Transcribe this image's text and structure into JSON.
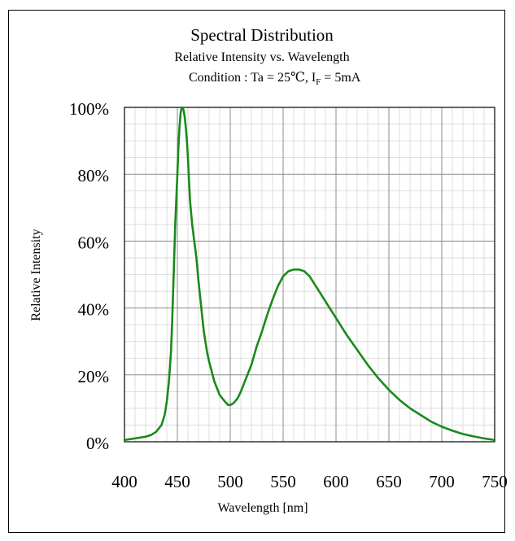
{
  "chart_data": {
    "type": "line",
    "title": "Spectral Distribution",
    "subtitle": "Relative Intensity vs. Wavelength",
    "condition": {
      "prefix": "Condition : Ta = 25℃, I",
      "subscript": "F",
      "suffix": " = 5mA"
    },
    "xlabel": "Wavelength [nm]",
    "ylabel": "Relative Intensity",
    "xlim": [
      400,
      750
    ],
    "ylim": [
      0,
      100
    ],
    "x_ticks": [
      400,
      450,
      500,
      550,
      600,
      650,
      700,
      750
    ],
    "x_tick_labels": [
      "400",
      "450",
      "500",
      "550",
      "600",
      "650",
      "700",
      "750"
    ],
    "y_ticks": [
      0,
      20,
      40,
      60,
      80,
      100
    ],
    "y_tick_labels": [
      "0%",
      "20%",
      "40%",
      "60%",
      "80%",
      "100%"
    ],
    "grid": true,
    "series": [
      {
        "color": "#1a8a1a",
        "x": [
          400,
          410,
          420,
          425,
          430,
          435,
          438,
          440,
          442,
          444,
          445,
          446,
          447,
          448,
          450,
          451,
          452,
          453,
          454,
          455,
          456,
          457,
          458,
          459,
          460,
          461,
          462,
          464,
          466,
          468,
          470,
          472,
          475,
          478,
          480,
          485,
          490,
          495,
          498,
          500,
          503,
          507,
          510,
          515,
          520,
          525,
          530,
          535,
          540,
          545,
          550,
          555,
          560,
          565,
          570,
          575,
          580,
          585,
          590,
          595,
          600,
          610,
          620,
          630,
          640,
          650,
          660,
          670,
          680,
          690,
          700,
          710,
          720,
          730,
          740,
          750
        ],
        "y": [
          0.5,
          1.0,
          1.5,
          2.0,
          3.0,
          5.0,
          8.0,
          12.0,
          18.0,
          27.0,
          35.0,
          45.0,
          55.0,
          65.0,
          80.0,
          88.0,
          94.0,
          98.0,
          100.0,
          100.0,
          99.0,
          97.0,
          94.0,
          90.0,
          85.0,
          78.0,
          72.0,
          65.0,
          60.0,
          55.0,
          48.0,
          42.0,
          33.0,
          27.0,
          24.0,
          18.0,
          14.0,
          12.0,
          11.0,
          11.0,
          11.5,
          13.0,
          15.0,
          19.0,
          23.0,
          28.5,
          33.0,
          38.0,
          42.5,
          46.5,
          49.5,
          51.0,
          51.5,
          51.5,
          51.0,
          49.5,
          47.0,
          44.5,
          42.0,
          39.5,
          37.0,
          32.0,
          27.5,
          23.0,
          19.0,
          15.5,
          12.5,
          10.0,
          8.0,
          6.0,
          4.5,
          3.3,
          2.3,
          1.6,
          1.0,
          0.5
        ]
      }
    ]
  }
}
